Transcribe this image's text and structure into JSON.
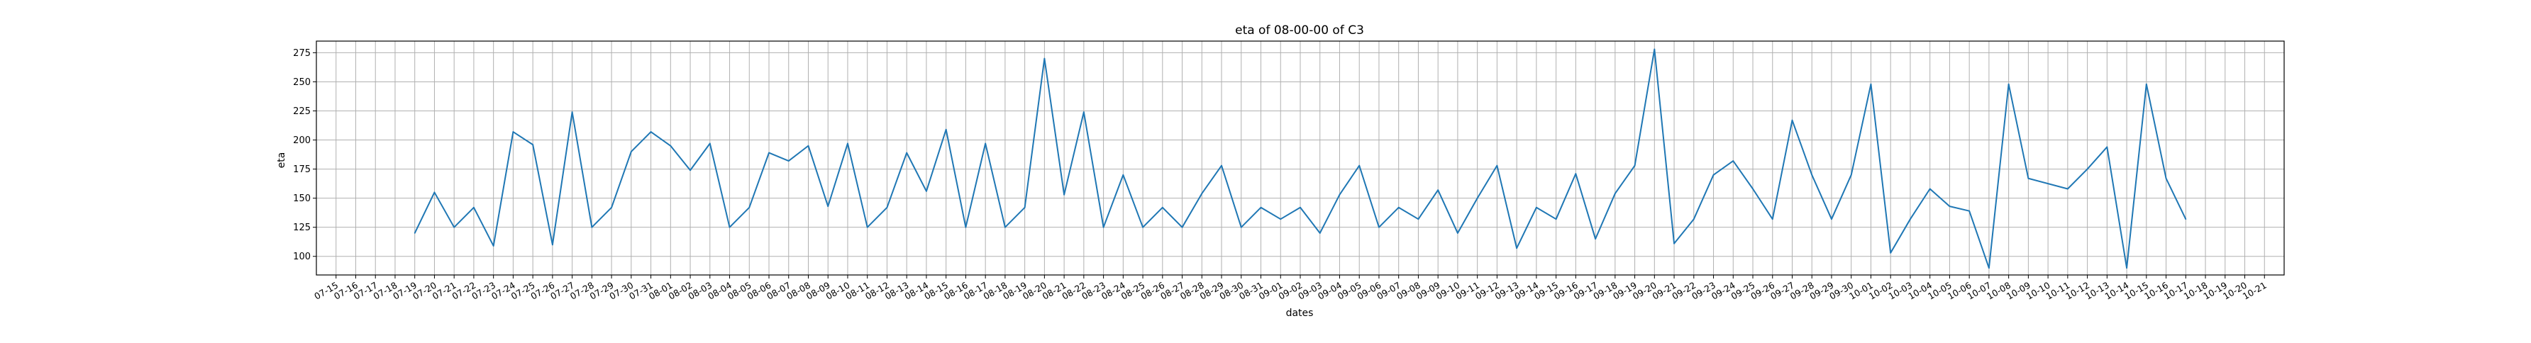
{
  "chart_data": {
    "type": "line",
    "title": "eta of 08-00-00 of C3",
    "xlabel": "dates",
    "ylabel": "eta",
    "grid": true,
    "line_color": "#1f77b4",
    "x_ticks": [
      "07-15",
      "07-16",
      "07-17",
      "07-18",
      "07-19",
      "07-20",
      "07-21",
      "07-22",
      "07-23",
      "07-24",
      "07-25",
      "07-26",
      "07-27",
      "07-28",
      "07-29",
      "07-30",
      "07-31",
      "08-01",
      "08-02",
      "08-03",
      "08-04",
      "08-05",
      "08-06",
      "08-07",
      "08-08",
      "08-09",
      "08-10",
      "08-11",
      "08-12",
      "08-13",
      "08-14",
      "08-15",
      "08-16",
      "08-17",
      "08-18",
      "08-19",
      "08-20",
      "08-21",
      "08-22",
      "08-23",
      "08-24",
      "08-25",
      "08-26",
      "08-27",
      "08-28",
      "08-29",
      "08-30",
      "08-31",
      "09-01",
      "09-02",
      "09-03",
      "09-04",
      "09-05",
      "09-06",
      "09-07",
      "09-08",
      "09-09",
      "09-10",
      "09-11",
      "09-12",
      "09-13",
      "09-14",
      "09-15",
      "09-16",
      "09-17",
      "09-18",
      "09-19",
      "09-20",
      "09-21",
      "09-22",
      "09-23",
      "09-24",
      "09-25",
      "09-26",
      "09-27",
      "09-28",
      "09-29",
      "09-30",
      "10-01",
      "10-02",
      "10-03",
      "10-04",
      "10-05",
      "10-06",
      "10-07",
      "10-08",
      "10-09",
      "10-10",
      "10-11",
      "10-12",
      "10-13",
      "10-14",
      "10-15",
      "10-16",
      "10-17",
      "10-18",
      "10-19",
      "10-20",
      "10-21"
    ],
    "y_ticks": [
      100,
      125,
      150,
      175,
      200,
      225,
      250,
      275
    ],
    "ylim": [
      84,
      285
    ],
    "xlim": [
      "07-14",
      "10-22"
    ],
    "series": [
      {
        "x": [
          "07-19",
          "07-20",
          "07-21",
          "07-22",
          "07-23",
          "07-24",
          "07-25",
          "07-26",
          "07-27",
          "07-28",
          "07-29",
          "07-30",
          "07-31",
          "08-01",
          "08-02",
          "08-03",
          "08-04",
          "08-05",
          "08-06",
          "08-07",
          "08-08",
          "08-09",
          "08-10",
          "08-11",
          "08-12",
          "08-13",
          "08-14",
          "08-15",
          "08-16",
          "08-17",
          "08-18",
          "08-19",
          "08-20",
          "08-21",
          "08-22",
          "08-23",
          "08-24",
          "08-25",
          "08-26",
          "08-27",
          "08-28",
          "08-29",
          "08-30",
          "08-31",
          "09-01",
          "09-02",
          "09-03",
          "09-04",
          "09-05",
          "09-06",
          "09-07",
          "09-08",
          "09-09",
          "09-10",
          "09-11",
          "09-12",
          "09-13",
          "09-14",
          "09-15",
          "09-16",
          "09-17",
          "09-18",
          "09-19",
          "09-20",
          "09-21",
          "09-22",
          "09-23",
          "09-24",
          "09-25",
          "09-26",
          "09-27",
          "09-28",
          "09-29",
          "09-30",
          "10-01",
          "10-02",
          "10-03",
          "10-04",
          "10-05",
          "10-06",
          "10-07",
          "10-08",
          "10-09",
          "10-11",
          "10-12",
          "10-13",
          "10-14",
          "10-15",
          "10-16",
          "10-17"
        ],
        "values": [
          120,
          155,
          125,
          142,
          109,
          207,
          196,
          110,
          224,
          125,
          142,
          190,
          207,
          195,
          174,
          197,
          125,
          142,
          189,
          182,
          195,
          143,
          197,
          125,
          142,
          189,
          156,
          209,
          125,
          197,
          125,
          142,
          270,
          153,
          224,
          125,
          170,
          125,
          142,
          125,
          154,
          178,
          125,
          142,
          132,
          142,
          120,
          153,
          178,
          125,
          142,
          132,
          157,
          120,
          150,
          178,
          107,
          142,
          132,
          171,
          115,
          154,
          178,
          278,
          111,
          132,
          170,
          182,
          158,
          132,
          217,
          170,
          132,
          170,
          248,
          103,
          132,
          158,
          143,
          139,
          90,
          248,
          167,
          158,
          175,
          194,
          90,
          248,
          167,
          132
        ]
      }
    ]
  }
}
